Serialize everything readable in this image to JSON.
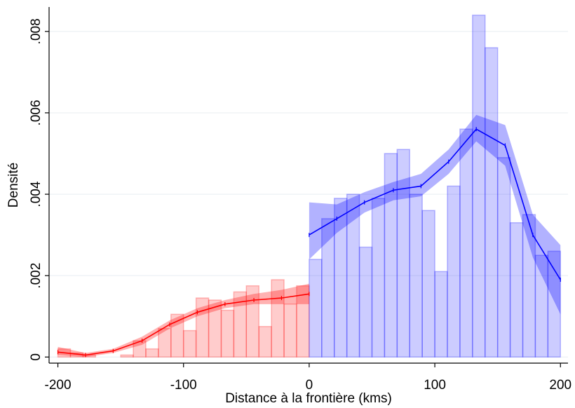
{
  "chart_data": {
    "type": "histogram",
    "xlabel": "Distance à la frontière (kms)",
    "ylabel": "Densité",
    "xlim": [
      -207,
      206
    ],
    "ylim": [
      -0.00015,
      0.0086
    ],
    "xticks": [
      -200,
      -100,
      0,
      100,
      200
    ],
    "yticks": [
      0,
      {
        "value": 0.002,
        "label": ".002"
      },
      {
        "value": 0.004,
        "label": ".004"
      },
      {
        "value": 0.006,
        "label": ".006"
      },
      {
        "value": 0.008,
        "label": ".008"
      }
    ],
    "grid": true,
    "series": [
      {
        "color": "#ff0000",
        "bins": [
          -200,
          -190,
          -180,
          -170,
          -160,
          -150,
          -140,
          -130,
          -120,
          -110,
          -100,
          -90,
          -80,
          -70,
          -60,
          -50,
          -40,
          -30,
          -20,
          -10,
          0
        ],
        "values": [
          0.0002,
          0.0001,
          5e-05,
          0,
          0,
          5e-05,
          0.0004,
          0.0002,
          0.0007,
          0.00105,
          0.00065,
          0.00145,
          0.0014,
          0.00115,
          0.0016,
          0.00175,
          0.00075,
          0.0019,
          0.0013,
          0.00175
        ]
      },
      {
        "color": "#0000ff",
        "bins": [
          0,
          10,
          20,
          30,
          40,
          50,
          60,
          70,
          80,
          90,
          100,
          110,
          120,
          130,
          140,
          150,
          160,
          170,
          180,
          190,
          200
        ],
        "values": [
          0.0024,
          0.0034,
          0.0039,
          0.004,
          0.0027,
          0.0039,
          0.005,
          0.0051,
          0.004,
          0.0036,
          0.0021,
          0.0042,
          0.0056,
          0.0084,
          0.0076,
          0.0049,
          0.0033,
          0.0035,
          0.0025,
          0.0026
        ]
      }
    ],
    "lines": [
      {
        "color": "#ff0000",
        "x": [
          -200,
          -178,
          -156,
          -133,
          -111,
          -89,
          -67,
          -44,
          -22,
          0
        ],
        "values": [
          0.00012,
          5e-05,
          0.00015,
          0.0004,
          0.0008,
          0.0011,
          0.0013,
          0.0014,
          0.00145,
          0.00155
        ],
        "lower": [
          5e-05,
          0,
          0.0001,
          0.0003,
          0.0007,
          0.001,
          0.0012,
          0.0013,
          0.0013,
          0.0013
        ],
        "upper": [
          0.00025,
          0.0001,
          0.0002,
          0.0005,
          0.0009,
          0.0012,
          0.0014,
          0.00155,
          0.00165,
          0.0018
        ]
      },
      {
        "color": "#0000ff",
        "x": [
          0,
          22,
          44,
          67,
          89,
          111,
          133,
          156,
          178,
          200
        ],
        "values": [
          0.003,
          0.0034,
          0.0038,
          0.0041,
          0.0042,
          0.0048,
          0.0056,
          0.0052,
          0.003,
          0.0019
        ],
        "lower": [
          0.0024,
          0.00305,
          0.00355,
          0.00385,
          0.00395,
          0.0045,
          0.0053,
          0.0047,
          0.00245,
          0.00105
        ],
        "upper": [
          0.0038,
          0.00375,
          0.00405,
          0.0043,
          0.0045,
          0.0051,
          0.00595,
          0.0057,
          0.0035,
          0.00275
        ]
      }
    ]
  }
}
